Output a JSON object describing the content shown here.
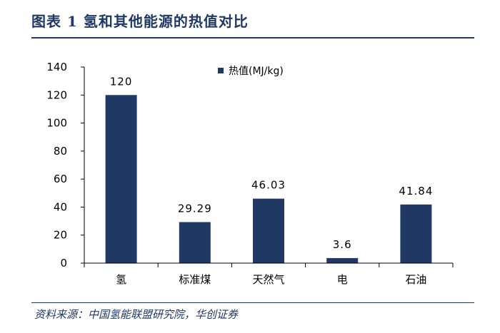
{
  "header": {
    "title": "图表 1 氢和其他能源的热值对比"
  },
  "footer": {
    "source": "资料来源：中国氢能联盟研究院，华创证券"
  },
  "colors": {
    "bar": "#1f3864",
    "rule": "#1f3864"
  },
  "chart_data": {
    "type": "bar",
    "title": "",
    "xlabel": "",
    "ylabel": "",
    "categories": [
      "氢",
      "标准煤",
      "天然气",
      "电",
      "石油"
    ],
    "series": [
      {
        "name": "热值(MJ/kg)",
        "values": [
          120,
          29.29,
          46.03,
          3.6,
          41.84
        ]
      }
    ],
    "data_labels": [
      "120",
      "29.29",
      "46.03",
      "3.6",
      "41.84"
    ],
    "ylim": [
      0,
      140
    ],
    "yticks": [
      0,
      20,
      40,
      60,
      80,
      100,
      120,
      140
    ],
    "grid": false,
    "legend_position": "top-right"
  }
}
